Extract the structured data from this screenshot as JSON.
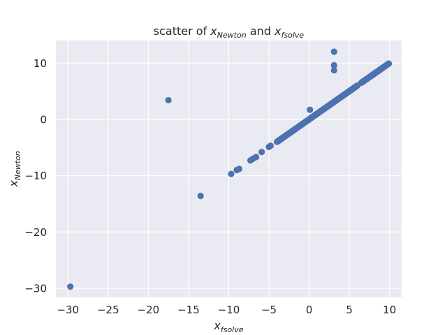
{
  "chart_data": {
    "type": "scatter",
    "title": {
      "prefix": "scatter of ",
      "var1": "x",
      "sub1": "Newton",
      "mid": " and ",
      "var2": "x",
      "sub2": "fsolve"
    },
    "xlabel": {
      "var": "x",
      "sub": "fsolve"
    },
    "ylabel": {
      "var": "x",
      "sub": "Newton"
    },
    "xlim": [
      -31.5,
      11.5
    ],
    "ylim": [
      -31.6,
      14
    ],
    "xticks": [
      -30,
      -25,
      -20,
      -15,
      -10,
      -5,
      0,
      5,
      10
    ],
    "yticks": [
      -30,
      -20,
      -10,
      0,
      10
    ],
    "xtick_labels": [
      "−30",
      "−25",
      "−20",
      "−15",
      "−10",
      "−5",
      "0",
      "5",
      "10"
    ],
    "ytick_labels": [
      "−30",
      "−20",
      "−10",
      "0",
      "10"
    ],
    "grid": true,
    "marker_color": "#4c72b0",
    "background_color": "#eaeaf2",
    "outliers": [
      [
        -29.7,
        -29.7
      ],
      [
        -17.5,
        3.4
      ],
      [
        -13.5,
        -13.6
      ],
      [
        -9.7,
        -9.7
      ],
      [
        -9.0,
        -9.0
      ],
      [
        -8.7,
        -8.8
      ],
      [
        -7.3,
        -7.3
      ],
      [
        -7.0,
        -7.0
      ],
      [
        -6.6,
        -6.7
      ],
      [
        -5.9,
        -5.8
      ],
      [
        -5.0,
        -4.9
      ],
      [
        -4.8,
        -4.7
      ],
      [
        0.1,
        1.7
      ],
      [
        3.1,
        12.0
      ],
      [
        3.1,
        9.6
      ],
      [
        3.1,
        8.7
      ]
    ],
    "diagonal_segments": [
      [
        -4,
        6
      ],
      [
        6.5,
        7.3
      ],
      [
        7.5,
        9.9
      ]
    ]
  }
}
